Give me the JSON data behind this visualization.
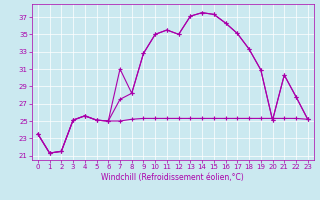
{
  "xlabel": "Windchill (Refroidissement éolien,°C)",
  "xlim": [
    -0.5,
    23.5
  ],
  "ylim": [
    20.5,
    38.5
  ],
  "yticks": [
    21,
    23,
    25,
    27,
    29,
    31,
    33,
    35,
    37
  ],
  "xticks": [
    0,
    1,
    2,
    3,
    4,
    5,
    6,
    7,
    8,
    9,
    10,
    11,
    12,
    13,
    14,
    15,
    16,
    17,
    18,
    19,
    20,
    21,
    22,
    23
  ],
  "bg_color": "#cbe9f0",
  "line_color": "#aa00aa",
  "grid_color": "#ffffff",
  "line1_y": [
    23.5,
    21.3,
    21.5,
    25.1,
    25.6,
    25.1,
    25.0,
    25.0,
    25.2,
    25.3,
    25.3,
    25.3,
    25.3,
    25.3,
    25.3,
    25.3,
    25.3,
    25.3,
    25.3,
    25.3,
    25.3,
    25.3,
    25.3,
    25.2
  ],
  "line2_y": [
    23.5,
    21.3,
    21.5,
    25.1,
    25.6,
    25.1,
    25.0,
    27.5,
    28.2,
    32.8,
    35.0,
    35.5,
    35.0,
    37.1,
    37.5,
    37.3,
    36.3,
    35.1,
    33.3,
    30.9,
    25.1,
    30.3,
    27.8,
    25.2
  ],
  "line3_y": [
    23.5,
    21.3,
    21.5,
    25.1,
    25.6,
    25.1,
    25.0,
    31.0,
    28.2,
    32.8,
    35.0,
    35.5,
    35.0,
    37.1,
    37.5,
    37.3,
    36.3,
    35.1,
    33.3,
    30.9,
    25.1,
    30.3,
    27.8,
    25.2
  ],
  "tick_fontsize": 5.0,
  "xlabel_fontsize": 5.5
}
